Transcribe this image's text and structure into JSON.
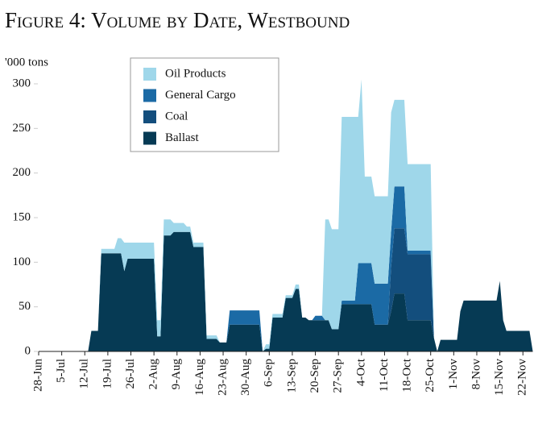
{
  "chart_data": {
    "type": "stacked-area",
    "title": "Figure 4: Volume by Date, Westbound",
    "y_label": "'000 tons",
    "legend": "top-left",
    "ylim": [
      0,
      300
    ],
    "yticks": [
      0,
      50,
      100,
      150,
      200,
      250,
      300
    ],
    "categories": [
      "28-Jun",
      null,
      null,
      null,
      null,
      null,
      null,
      "5-Jul",
      null,
      null,
      null,
      null,
      null,
      null,
      "12-Jul",
      null,
      null,
      null,
      null,
      null,
      null,
      "19-Jul",
      null,
      null,
      null,
      null,
      null,
      null,
      "26-Jul",
      null,
      null,
      null,
      null,
      null,
      null,
      "2-Aug",
      null,
      null,
      null,
      null,
      null,
      null,
      "9-Aug",
      null,
      null,
      null,
      null,
      null,
      null,
      "16-Aug",
      null,
      null,
      null,
      null,
      null,
      null,
      "23-Aug",
      null,
      null,
      null,
      null,
      null,
      null,
      "30-Aug",
      null,
      null,
      null,
      null,
      null,
      null,
      "6-Sep",
      null,
      null,
      null,
      null,
      null,
      null,
      "13-Sep",
      null,
      null,
      null,
      null,
      null,
      null,
      "20-Sep",
      null,
      null,
      null,
      null,
      null,
      null,
      "27-Sep",
      null,
      null,
      null,
      null,
      null,
      null,
      "4-Oct",
      null,
      null,
      null,
      null,
      null,
      null,
      "11-Oct",
      null,
      null,
      null,
      null,
      null,
      null,
      "18-Oct",
      null,
      null,
      null,
      null,
      null,
      null,
      "25-Oct",
      null,
      null,
      null,
      null,
      null,
      null,
      "1-Nov",
      null,
      null,
      null,
      null,
      null,
      null,
      "8-Nov",
      null,
      null,
      null,
      null,
      null,
      null,
      "15-Nov",
      null,
      null,
      null,
      null,
      null,
      null,
      "22-Nov",
      null,
      null,
      null
    ],
    "series": [
      {
        "name": "Oil Products",
        "color": "#9fd7ea",
        "values": [
          0,
          0,
          0,
          0,
          0,
          0,
          0,
          0,
          0,
          0,
          0,
          0,
          0,
          0,
          0,
          0,
          0,
          0,
          0,
          5,
          5,
          5,
          5,
          5,
          17,
          17,
          32,
          18,
          18,
          18,
          18,
          18,
          18,
          18,
          18,
          18,
          18,
          18,
          18,
          18,
          18,
          10,
          10,
          10,
          10,
          6,
          6,
          5,
          5,
          5,
          5,
          4,
          4,
          4,
          4,
          0,
          0,
          0,
          0,
          0,
          0,
          0,
          0,
          0,
          0,
          0,
          0,
          0,
          0,
          5,
          5,
          4,
          4,
          4,
          4,
          3,
          3,
          3,
          5,
          5,
          0,
          0,
          0,
          0,
          0,
          0,
          0,
          113,
          113,
          112,
          112,
          112,
          206,
          206,
          206,
          206,
          206,
          164,
          206,
          97,
          97,
          97,
          98,
          98,
          98,
          98,
          98,
          133,
          97,
          97,
          97,
          97,
          97,
          97,
          97,
          97,
          97,
          97,
          97,
          97,
          0,
          0,
          0,
          0,
          0,
          0,
          0,
          0,
          0,
          0,
          0,
          0,
          0,
          0,
          0,
          0,
          0,
          0,
          0,
          0,
          0,
          0,
          0,
          0,
          0,
          0,
          0,
          0,
          0,
          0,
          0
        ]
      },
      {
        "name": "General Cargo",
        "color": "#1b6aa5",
        "values": [
          0,
          0,
          0,
          0,
          0,
          0,
          0,
          0,
          0,
          0,
          0,
          0,
          0,
          0,
          0,
          0,
          0,
          0,
          0,
          0,
          0,
          0,
          0,
          0,
          0,
          0,
          0,
          0,
          0,
          0,
          0,
          0,
          0,
          0,
          0,
          0,
          0,
          0,
          0,
          0,
          0,
          0,
          0,
          0,
          0,
          0,
          0,
          0,
          0,
          0,
          0,
          0,
          0,
          0,
          0,
          0,
          0,
          0,
          16,
          16,
          16,
          16,
          16,
          16,
          16,
          16,
          16,
          16,
          0,
          0,
          0,
          0,
          0,
          0,
          0,
          0,
          0,
          0,
          0,
          0,
          0,
          0,
          0,
          0,
          5,
          5,
          5,
          0,
          0,
          0,
          0,
          0,
          4,
          4,
          4,
          4,
          4,
          46,
          46,
          46,
          46,
          46,
          46,
          46,
          46,
          46,
          46,
          40,
          47,
          47,
          47,
          47,
          4,
          4,
          4,
          4,
          4,
          4,
          4,
          4,
          0,
          0,
          0,
          0,
          0,
          0,
          0,
          0,
          0,
          0,
          0,
          0,
          0,
          0,
          0,
          0,
          0,
          0,
          0,
          0,
          0,
          0,
          0,
          0,
          0,
          0,
          0,
          0,
          0,
          0,
          0
        ]
      },
      {
        "name": "Coal",
        "color": "#134e7d",
        "values": [
          0,
          0,
          0,
          0,
          0,
          0,
          0,
          0,
          0,
          0,
          0,
          0,
          0,
          0,
          0,
          0,
          0,
          0,
          0,
          0,
          0,
          0,
          0,
          0,
          0,
          0,
          0,
          0,
          0,
          0,
          0,
          0,
          0,
          0,
          0,
          0,
          0,
          0,
          0,
          0,
          0,
          0,
          0,
          0,
          0,
          0,
          0,
          0,
          0,
          0,
          0,
          0,
          0,
          0,
          0,
          0,
          0,
          0,
          0,
          0,
          0,
          0,
          0,
          0,
          0,
          0,
          0,
          0,
          0,
          0,
          0,
          0,
          0,
          0,
          0,
          0,
          0,
          0,
          0,
          0,
          0,
          0,
          0,
          0,
          0,
          0,
          0,
          0,
          0,
          0,
          0,
          0,
          0,
          0,
          0,
          0,
          0,
          0,
          0,
          0,
          0,
          0,
          0,
          0,
          0,
          0,
          0,
          50,
          73,
          73,
          73,
          73,
          74,
          74,
          74,
          74,
          74,
          74,
          74,
          74,
          0,
          0,
          0,
          0,
          0,
          0,
          0,
          0,
          0,
          0,
          0,
          0,
          0,
          0,
          0,
          0,
          0,
          0,
          0,
          0,
          0,
          0,
          0,
          0,
          0,
          0,
          0,
          0,
          0,
          0,
          0
        ]
      },
      {
        "name": "Ballast",
        "color": "#063a54",
        "values": [
          0,
          0,
          0,
          0,
          0,
          0,
          0,
          0,
          0,
          0,
          0,
          0,
          0,
          0,
          0,
          0,
          23,
          23,
          23,
          110,
          110,
          110,
          110,
          110,
          110,
          110,
          90,
          104,
          104,
          104,
          104,
          104,
          104,
          104,
          104,
          104,
          17,
          17,
          130,
          130,
          130,
          134,
          134,
          134,
          134,
          134,
          134,
          117,
          117,
          117,
          117,
          14,
          14,
          14,
          14,
          10,
          10,
          10,
          30,
          30,
          30,
          30,
          30,
          30,
          30,
          30,
          30,
          30,
          0,
          3,
          3,
          38,
          38,
          38,
          38,
          60,
          60,
          60,
          70,
          70,
          38,
          38,
          35,
          35,
          35,
          35,
          35,
          35,
          35,
          25,
          25,
          25,
          53,
          53,
          53,
          53,
          53,
          53,
          53,
          53,
          53,
          53,
          30,
          30,
          30,
          30,
          30,
          45,
          65,
          65,
          65,
          65,
          35,
          35,
          35,
          35,
          35,
          35,
          35,
          35,
          15,
          0,
          13,
          13,
          13,
          13,
          13,
          13,
          45,
          57,
          57,
          57,
          57,
          57,
          57,
          57,
          57,
          57,
          57,
          57,
          79,
          35,
          23,
          23,
          23,
          23,
          23,
          23,
          23,
          23,
          0
        ]
      }
    ]
  }
}
